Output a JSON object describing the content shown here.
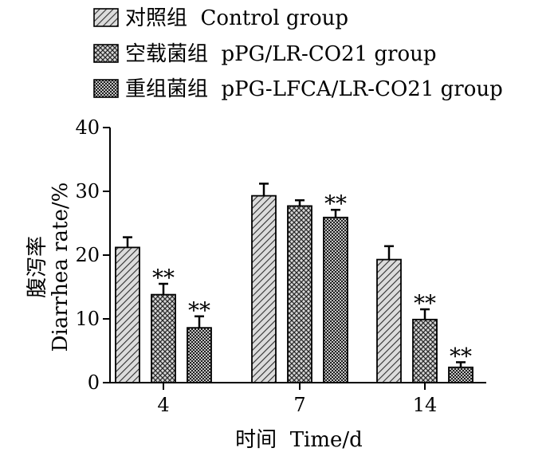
{
  "chart_data": {
    "type": "bar",
    "xlabel": "时间  Time/d",
    "ylabel_cn": "腹泻率",
    "ylabel_en": "Diarrhea rate/%",
    "ylim": [
      0,
      40
    ],
    "yticks": [
      "0",
      "10",
      "20",
      "30",
      "40"
    ],
    "categories": [
      "4",
      "7",
      "14"
    ],
    "legend_position": "top-left",
    "series": [
      {
        "name": "对照组  Control group",
        "pattern": "diagonal-hatch",
        "values": [
          21.2,
          29.3,
          19.3
        ],
        "errors": [
          1.6,
          1.9,
          2.1
        ],
        "marks": [
          "",
          "",
          ""
        ]
      },
      {
        "name": "空载菌组  pPG/LR-CO21 group",
        "pattern": "cross-hatch",
        "values": [
          13.8,
          27.7,
          9.9
        ],
        "errors": [
          1.7,
          0.9,
          1.6
        ],
        "marks": [
          "**",
          "",
          "**"
        ]
      },
      {
        "name": "重组菌组  pPG-LFCA/LR-CO21 group",
        "pattern": "checker",
        "values": [
          8.6,
          25.9,
          2.4
        ],
        "errors": [
          1.8,
          1.2,
          0.8
        ],
        "marks": [
          "**",
          "**",
          "**"
        ]
      }
    ]
  }
}
